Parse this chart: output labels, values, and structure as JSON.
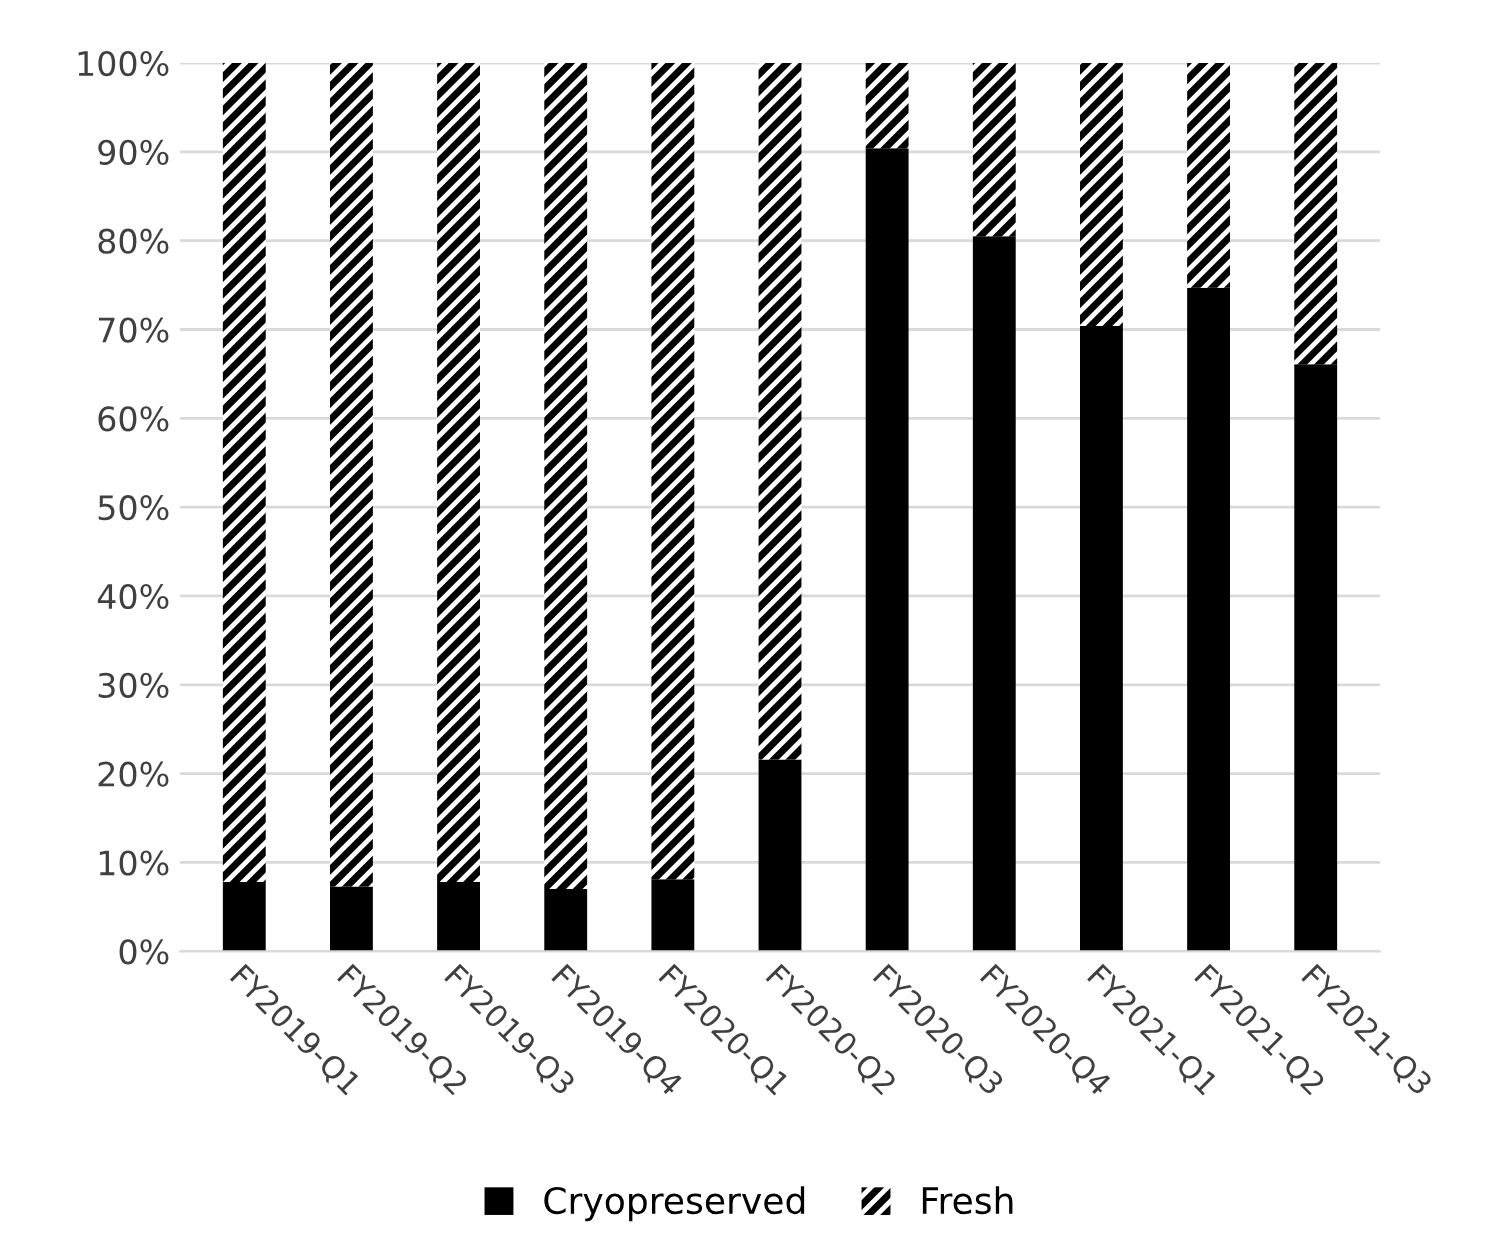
{
  "chart_data": {
    "type": "bar",
    "stacked": true,
    "categories": [
      "FY2019-Q1",
      "FY2019-Q2",
      "FY2019-Q3",
      "FY2019-Q4",
      "FY2020-Q1",
      "FY2020-Q2",
      "FY2020-Q3",
      "FY2020-Q4",
      "FY2021-Q1",
      "FY2021-Q2",
      "FY2021-Q3"
    ],
    "series": [
      {
        "name": "Cryopreserved",
        "color": "#000000",
        "values": [
          7.8,
          7.3,
          7.8,
          7.0,
          8.1,
          21.6,
          90.4,
          80.5,
          70.4,
          74.7,
          66.1
        ]
      },
      {
        "name": "Fresh",
        "color": "#000000",
        "values": [
          92.2,
          92.7,
          92.2,
          93.0,
          91.9,
          78.4,
          9.6,
          19.5,
          29.6,
          25.3,
          33.9
        ]
      }
    ],
    "ylim": [
      0,
      100
    ],
    "yticks": [
      {
        "value": 0,
        "label": "0%"
      },
      {
        "value": 10,
        "label": "10%"
      },
      {
        "value": 20,
        "label": "20%"
      },
      {
        "value": 30,
        "label": "30%"
      },
      {
        "value": 40,
        "label": "40%"
      },
      {
        "value": 50,
        "label": "50%"
      },
      {
        "value": 60,
        "label": "60%"
      },
      {
        "value": 70,
        "label": "70%"
      },
      {
        "value": 80,
        "label": "80%"
      },
      {
        "value": 90,
        "label": "90%"
      },
      {
        "value": 100,
        "label": "100%"
      }
    ],
    "grid": "y",
    "legend": "bottom"
  }
}
